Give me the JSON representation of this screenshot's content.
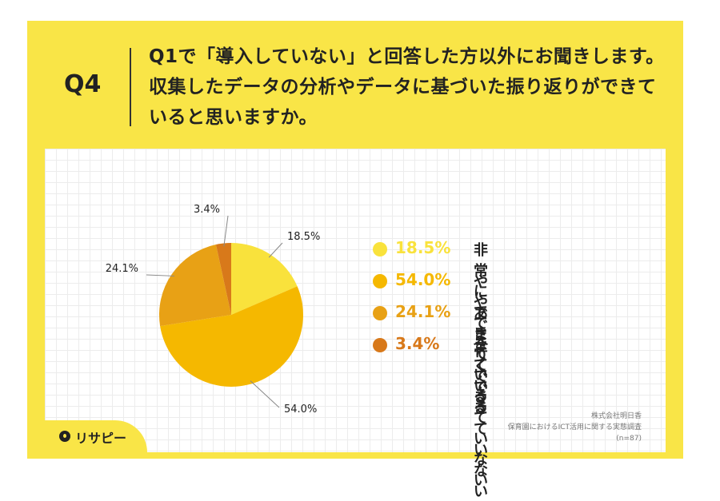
{
  "header": {
    "q_label": "Q4",
    "question": "Q1で「導入していない」と回答した方以外にお聞きします。収集したデータの分析やデータに基づいた振り返りができていると思いますか。"
  },
  "chart_data": {
    "type": "pie",
    "slices": [
      {
        "label": "非常にできている",
        "value": 18.5,
        "display": "18.5%",
        "color": "#f9e23c"
      },
      {
        "label": "ややできている",
        "value": 54.0,
        "display": "54.0%",
        "color": "#f5b800"
      },
      {
        "label": "あまりできていない",
        "value": 24.1,
        "display": "24.1%",
        "color": "#e8a115"
      },
      {
        "label": "全くできていない",
        "value": 3.4,
        "display": "3.4%",
        "color": "#d8791a"
      }
    ],
    "start": "12 o'clock",
    "direction": "clockwise",
    "legend_position": "right"
  },
  "source": {
    "company": "株式会社明日香",
    "survey": "保育園におけるICT活用に関する実態調査",
    "n": "(n=87)"
  },
  "logo": {
    "text": "リサピー"
  }
}
